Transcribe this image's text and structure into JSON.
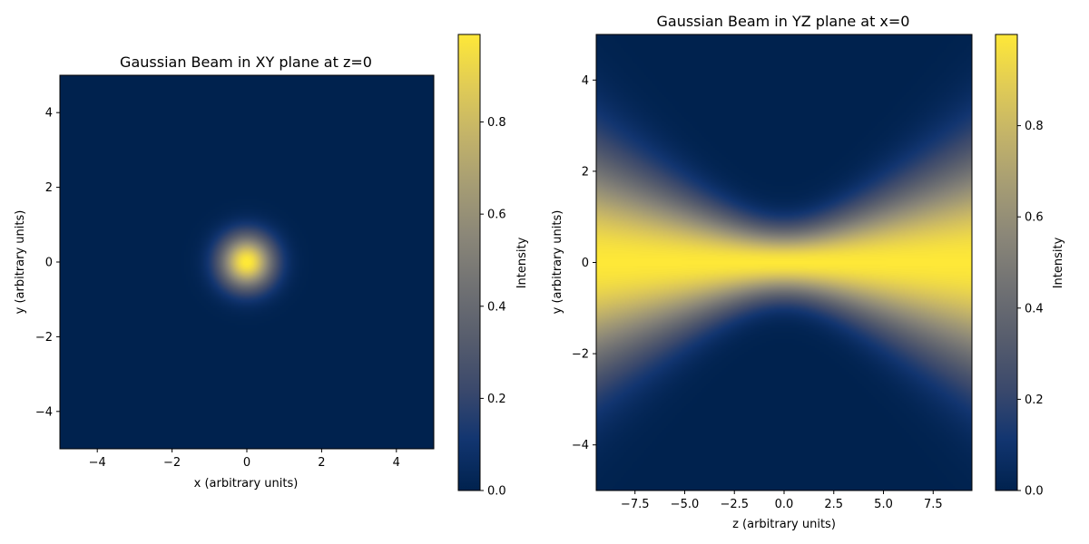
{
  "chart_data": [
    {
      "type": "heatmap",
      "title": "Gaussian Beam in XY plane at z=0",
      "xlabel": "x (arbitrary units)",
      "ylabel": "y (arbitrary units)",
      "xlim": [
        -5,
        5
      ],
      "ylim": [
        -5,
        5
      ],
      "xticks": [
        -4,
        -2,
        0,
        2,
        4
      ],
      "yticks": [
        -4,
        -2,
        0,
        2,
        4
      ],
      "field": "xy",
      "beam_waist": 1.0,
      "colorbar": {
        "label": "Intensity",
        "range": [
          0,
          0.99
        ],
        "ticks": [
          0.0,
          0.2,
          0.4,
          0.6,
          0.8
        ]
      }
    },
    {
      "type": "heatmap",
      "title": "Gaussian Beam in YZ plane at x=0",
      "xlabel": "z (arbitrary units)",
      "ylabel": "y (arbitrary units)",
      "xlim": [
        -9.45,
        9.45
      ],
      "ylim": [
        -5,
        5
      ],
      "xticks": [
        -7.5,
        -5.0,
        -2.5,
        0.0,
        2.5,
        5.0,
        7.5
      ],
      "yticks": [
        -4,
        -2,
        0,
        2,
        4
      ],
      "field": "yz",
      "beam_waist": 1.0,
      "rayleigh_range": 3.14,
      "colorbar": {
        "label": "Intensity",
        "range": [
          0,
          1.0
        ],
        "ticks": [
          0.0,
          0.2,
          0.4,
          0.6,
          0.8
        ]
      }
    }
  ],
  "colormap": {
    "name": "cividis",
    "stops": [
      "#00224e",
      "#123570",
      "#3b496c",
      "#575d6d",
      "#707173",
      "#8a8678",
      "#a59c74",
      "#c3b369",
      "#e1cc55",
      "#fee838"
    ]
  }
}
